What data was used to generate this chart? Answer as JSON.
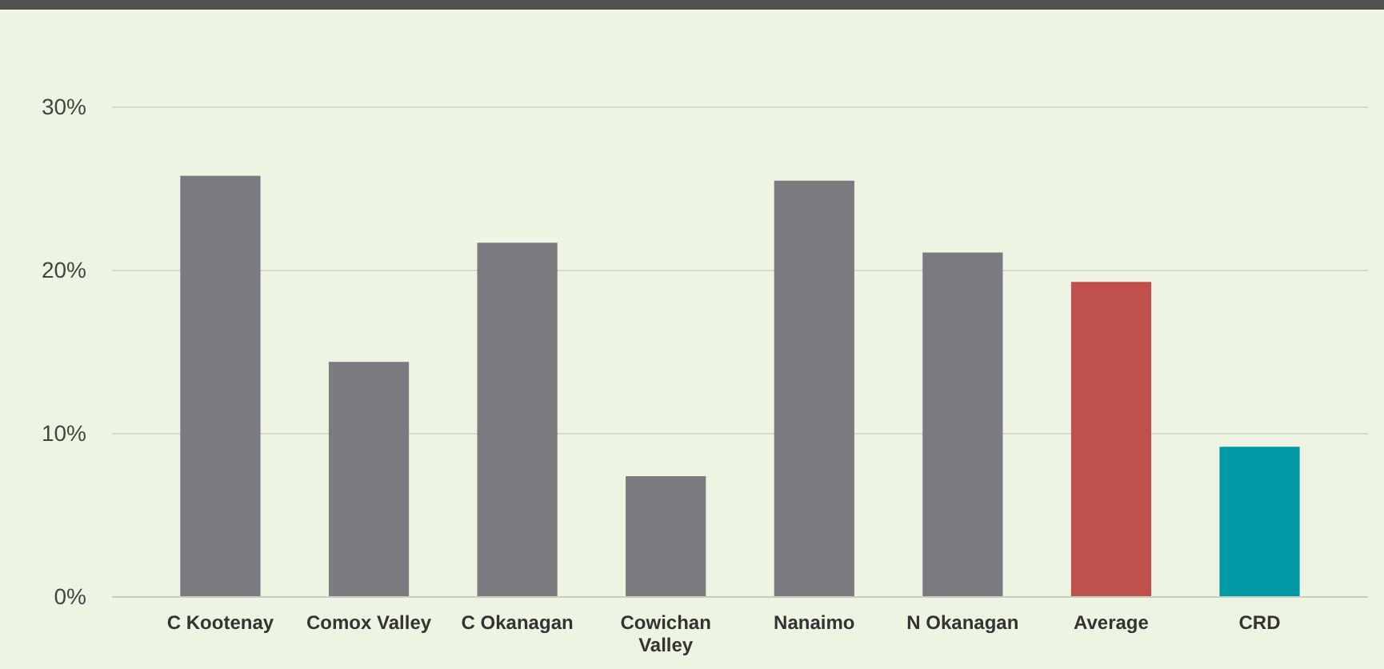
{
  "chart_data": {
    "type": "bar",
    "categories": [
      "C Kootenay",
      "Comox Valley",
      "C Okanagan",
      "Cowichan Valley",
      "Nanaimo",
      "N Okanagan",
      "Average",
      "CRD"
    ],
    "values": [
      25.8,
      14.4,
      21.7,
      7.4,
      25.5,
      21.1,
      19.3,
      9.2
    ],
    "colors": [
      "#7b7a7f",
      "#7b7a7f",
      "#7b7a7f",
      "#7b7a7f",
      "#7b7a7f",
      "#7b7a7f",
      "#c0504d",
      "#0099a6"
    ],
    "ylim": [
      0,
      30
    ],
    "yticks": [
      {
        "value": 0,
        "label": "0%"
      },
      {
        "value": 10,
        "label": "10%"
      },
      {
        "value": 20,
        "label": "20%"
      },
      {
        "value": 30,
        "label": "30%"
      }
    ],
    "grid": "y"
  }
}
